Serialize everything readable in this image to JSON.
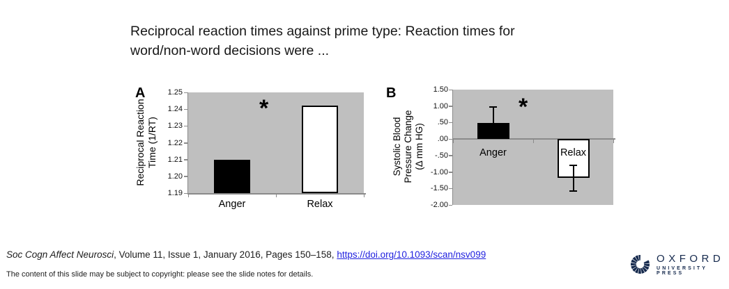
{
  "slide": {
    "title_lines": [
      "Reciprocal reaction times against prime type: Reaction times for",
      "word/non-word decisions were ..."
    ],
    "citation": {
      "journal_italic": "Soc Cogn Affect Neurosci",
      "middle": ", Volume 11, Issue 1, January 2016, Pages 150–158, ",
      "link_text": "https://doi.org/10.1093/scan/nsv099",
      "link_color": "#2121DF"
    },
    "copyright_note": "The content of this slide may be subject to copyright: please see the slide notes for details.",
    "logo": {
      "wordmark": "OXFORD",
      "subtitle": "UNIVERSITY PRESS",
      "color": "#15294D"
    }
  },
  "chart_data": [
    {
      "id": "A",
      "type": "bar",
      "panel_label": "A",
      "ylabel_lines": [
        "Reciprocal Reaction",
        "Time (1/RT)"
      ],
      "categories": [
        "Anger",
        "Relax"
      ],
      "values": [
        1.21,
        1.242
      ],
      "bar_fills": [
        "#000000",
        "#ffffff"
      ],
      "ylim": [
        1.19,
        1.25
      ],
      "yticks": [
        {
          "v": 1.25,
          "label": "1.25"
        },
        {
          "v": 1.24,
          "label": "1.24"
        },
        {
          "v": 1.23,
          "label": "1.23"
        },
        {
          "v": 1.22,
          "label": "1.22"
        },
        {
          "v": 1.21,
          "label": "1.21"
        },
        {
          "v": 1.2,
          "label": "1.20"
        },
        {
          "v": 1.19,
          "label": "1.19"
        }
      ],
      "errors": null,
      "annotation": "*",
      "plot_bg": "#bfbfbf",
      "grid": false,
      "legend": false
    },
    {
      "id": "B",
      "type": "bar",
      "panel_label": "B",
      "ylabel_lines": [
        "Systolic Blood",
        "Pressure Change",
        "(Δ mm HG)"
      ],
      "categories": [
        "Anger",
        "Relax"
      ],
      "values": [
        0.48,
        -1.18
      ],
      "bar_fills": [
        "#000000",
        "#ffffff"
      ],
      "ylim": [
        -2.0,
        1.5
      ],
      "yticks": [
        {
          "v": 1.5,
          "label": "1.50"
        },
        {
          "v": 1.0,
          "label": "1.00"
        },
        {
          "v": 0.5,
          "label": ".50"
        },
        {
          "v": 0.0,
          "label": ".00"
        },
        {
          "v": -0.5,
          "label": "-.50"
        },
        {
          "v": -1.0,
          "label": "-1.00"
        },
        {
          "v": -1.5,
          "label": "-1.50"
        },
        {
          "v": -2.0,
          "label": "-2.00"
        }
      ],
      "errors": [
        {
          "up": 0.49,
          "down": 0
        },
        {
          "up": 0.39,
          "down": 0.39
        }
      ],
      "annotation": "*",
      "plot_bg": "#bfbfbf",
      "grid": false,
      "legend": false
    }
  ]
}
